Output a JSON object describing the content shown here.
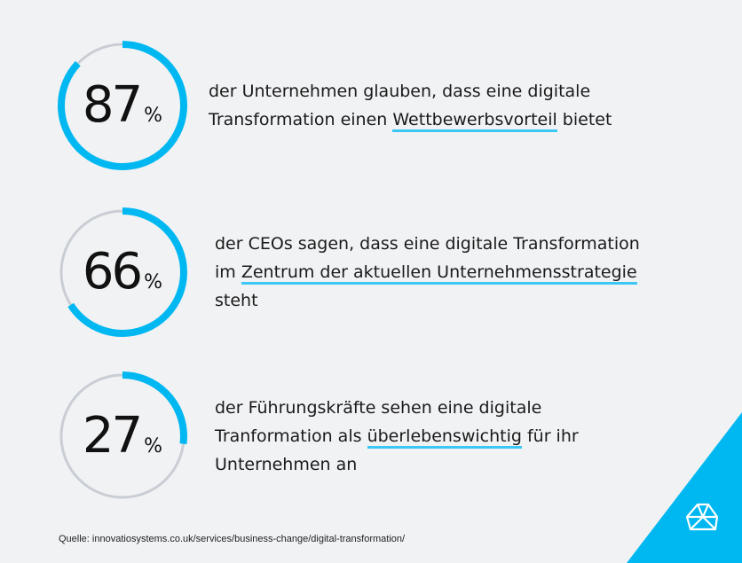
{
  "chart_data": {
    "type": "donut-stats",
    "stats": [
      {
        "value": 87,
        "unit": "%",
        "text_before": "der Unternehmen glauben, dass eine digitale Transformation einen ",
        "highlight": "Wettbewerbsvorteil",
        "text_after": " bietet",
        "line1": "der Unternehmen glauben, dass eine digitale",
        "line2_before": "Transformation einen ",
        "line2_hl": "Wettbewerbsvorteil",
        "line2_after": " bietet"
      },
      {
        "value": 66,
        "unit": "%",
        "line1": "der CEOs sagen, dass eine digitale Transformation",
        "line2_before": "im ",
        "line2_hl": "Zentrum der aktuellen Unternehmensstrategie",
        "line2_after": "",
        "line3": "steht"
      },
      {
        "value": 27,
        "unit": "%",
        "line1": "der Führungskräfte sehen eine digitale",
        "line2_before": "Tranformation als ",
        "line2_hl": "überlebenswichtig",
        "line2_after": " für ihr",
        "line3": "Unternehmen an"
      }
    ]
  },
  "colors": {
    "accent": "#00b8f1",
    "track": "#c9ced4",
    "highlight": "#3dc7f5",
    "background": "#f1f2f4"
  },
  "source": "Quelle: innovatiosystems.co.uk/services/business-change/digital-transformation/",
  "logo_icon": "diamond-logo-icon"
}
